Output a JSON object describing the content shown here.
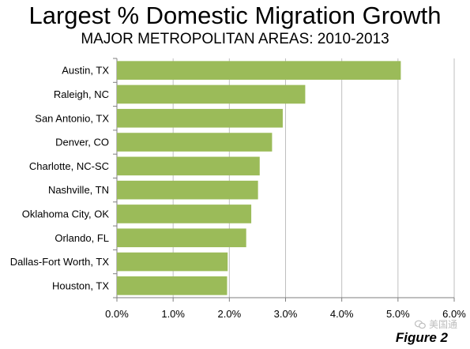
{
  "header": {
    "title": "Largest % Domestic Migration Growth",
    "subtitle": "MAJOR METROPOLITAN AREAS: 2010-2013"
  },
  "watermark": {
    "text": "美国通",
    "icon": "wechat-icon"
  },
  "figure_label": "Figure 2",
  "colors": {
    "bar": "#9bbb59",
    "grid": "#bfbfbf",
    "axis": "#7f7f7f"
  },
  "chart_data": {
    "type": "bar",
    "orientation": "horizontal",
    "title": "Largest % Domestic Migration Growth",
    "subtitle": "MAJOR METROPOLITAN AREAS: 2010-2013",
    "categories": [
      "Austin, TX",
      "Raleigh, NC",
      "San Antonio, TX",
      "Denver, CO",
      "Charlotte, NC-SC",
      "Nashville, TN",
      "Oklahoma City, OK",
      "Orlando, FL",
      "Dallas-Fort Worth, TX",
      "Houston, TX"
    ],
    "values": [
      5.05,
      3.35,
      2.95,
      2.76,
      2.54,
      2.51,
      2.39,
      2.3,
      1.97,
      1.96
    ],
    "xlim": [
      0,
      6
    ],
    "xticks": [
      "0.0%",
      "1.0%",
      "2.0%",
      "3.0%",
      "4.0%",
      "5.0%",
      "6.0%"
    ],
    "xlabel": "",
    "ylabel": "",
    "grid": true,
    "legend": "none"
  }
}
